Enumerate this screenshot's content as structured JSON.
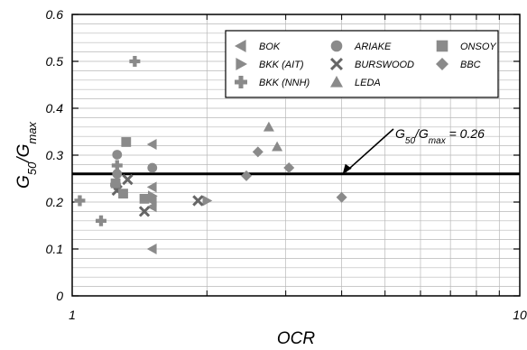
{
  "chart_data": {
    "type": "scatter",
    "xscale": "log",
    "xlim": [
      1,
      10
    ],
    "ylim": [
      0,
      0.6
    ],
    "x_ticks": [
      1,
      10
    ],
    "x_tick_labels": [
      "1",
      "10"
    ],
    "y_ticks": [
      0,
      0.1,
      0.2,
      0.3,
      0.4,
      0.5,
      0.6
    ],
    "y_tick_labels": [
      "0",
      "0.1",
      "0.2",
      "0.3",
      "0.4",
      "0.5",
      "0.6"
    ],
    "xlabel": "OCR",
    "ylabel": {
      "base": "G",
      "base_sub": "50",
      "mid": "/G",
      "mid_sub": "max"
    },
    "grid": true,
    "legend_position": "top-right",
    "reference_line": {
      "y": 0.26,
      "label": {
        "base": "G",
        "base_sub": "50",
        "mid": "/G",
        "mid_sub": "max",
        "tail": " = 0.26"
      }
    },
    "series": [
      {
        "name": "BOK",
        "marker": "triangle-left",
        "color": "#8a8a8a",
        "points": [
          [
            1.51,
            0.323
          ],
          [
            1.51,
            0.232
          ],
          [
            1.51,
            0.202
          ],
          [
            1.51,
            0.19
          ],
          [
            1.51,
            0.1
          ]
        ]
      },
      {
        "name": "BKK (AIT)",
        "marker": "triangle-right",
        "color": "#8a8a8a",
        "points": [
          [
            1.51,
            0.213
          ],
          [
            2.0,
            0.203
          ]
        ]
      },
      {
        "name": "BKK (NNH)",
        "marker": "plus",
        "color": "#8a8a8a",
        "points": [
          [
            1.38,
            0.5
          ],
          [
            1.26,
            0.278
          ],
          [
            1.25,
            0.237
          ],
          [
            1.04,
            0.203
          ],
          [
            1.16,
            0.16
          ]
        ]
      },
      {
        "name": "ARIAKE",
        "marker": "circle",
        "color": "#8a8a8a",
        "points": [
          [
            1.26,
            0.301
          ],
          [
            1.51,
            0.273
          ],
          [
            1.26,
            0.26
          ]
        ]
      },
      {
        "name": "BURSWOOD",
        "marker": "x",
        "color": "#666666",
        "points": [
          [
            1.33,
            0.248
          ],
          [
            1.26,
            0.225
          ],
          [
            1.45,
            0.18
          ],
          [
            1.91,
            0.203
          ]
        ]
      },
      {
        "name": "LEDA",
        "marker": "triangle-up",
        "color": "#8a8a8a",
        "points": [
          [
            2.75,
            0.36
          ],
          [
            2.87,
            0.318
          ]
        ]
      },
      {
        "name": "ONSOY",
        "marker": "square",
        "color": "#8a8a8a",
        "points": [
          [
            1.32,
            0.328
          ],
          [
            1.25,
            0.24
          ],
          [
            1.3,
            0.218
          ],
          [
            1.45,
            0.207
          ]
        ]
      },
      {
        "name": "BBC",
        "marker": "diamond",
        "color": "#8a8a8a",
        "points": [
          [
            2.6,
            0.307
          ],
          [
            3.05,
            0.273
          ],
          [
            2.45,
            0.256
          ],
          [
            4.0,
            0.21
          ]
        ]
      }
    ]
  }
}
